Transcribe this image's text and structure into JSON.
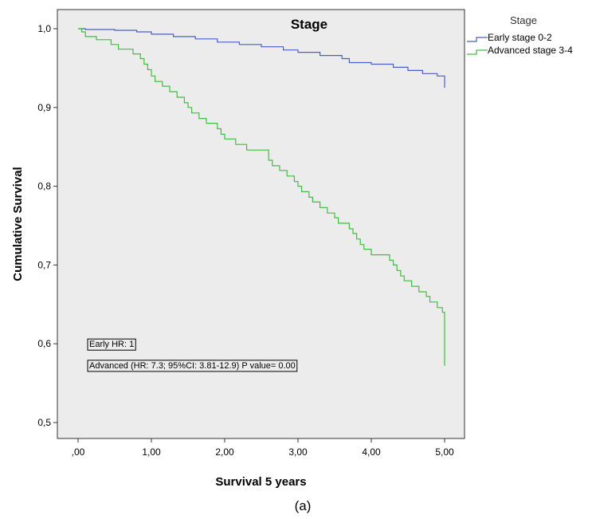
{
  "chart_data": {
    "type": "line",
    "title": "Stage",
    "xlabel": "Survival 5 years",
    "ylabel": "Cumulative Survival",
    "xlim": [
      0,
      5
    ],
    "ylim": [
      0.5,
      1.0
    ],
    "x_ticks": [
      {
        "value": 0,
        "label": ",00"
      },
      {
        "value": 1,
        "label": "1,00"
      },
      {
        "value": 2,
        "label": "2,00"
      },
      {
        "value": 3,
        "label": "3,00"
      },
      {
        "value": 4,
        "label": "4,00"
      },
      {
        "value": 5,
        "label": "5,00"
      }
    ],
    "y_ticks": [
      {
        "value": 0.5,
        "label": "0,5"
      },
      {
        "value": 0.6,
        "label": "0,6"
      },
      {
        "value": 0.7,
        "label": "0,7"
      },
      {
        "value": 0.8,
        "label": "0,8"
      },
      {
        "value": 0.9,
        "label": "0,9"
      },
      {
        "value": 1.0,
        "label": "1,0"
      }
    ],
    "grid": false,
    "legend": {
      "title": "Stage",
      "placement": "top-right-outside"
    },
    "series": [
      {
        "name": "Early stage 0-2",
        "color": "#4a5fc1",
        "step": true,
        "points": [
          [
            0,
            1.0
          ],
          [
            0.1,
            0.999
          ],
          [
            0.5,
            0.998
          ],
          [
            0.8,
            0.996
          ],
          [
            1.0,
            0.993
          ],
          [
            1.3,
            0.99
          ],
          [
            1.6,
            0.987
          ],
          [
            1.9,
            0.983
          ],
          [
            2.2,
            0.98
          ],
          [
            2.5,
            0.977
          ],
          [
            2.8,
            0.973
          ],
          [
            3.0,
            0.97
          ],
          [
            3.3,
            0.966
          ],
          [
            3.6,
            0.962
          ],
          [
            3.7,
            0.957
          ],
          [
            4.0,
            0.955
          ],
          [
            4.3,
            0.951
          ],
          [
            4.5,
            0.947
          ],
          [
            4.7,
            0.943
          ],
          [
            4.9,
            0.94
          ],
          [
            5.0,
            0.936
          ],
          [
            5.0,
            0.925
          ]
        ]
      },
      {
        "name": "Advanced stage 3-4",
        "color": "#3fbf3f",
        "step": true,
        "points": [
          [
            0,
            1.0
          ],
          [
            0.05,
            0.996
          ],
          [
            0.1,
            0.99
          ],
          [
            0.25,
            0.986
          ],
          [
            0.45,
            0.98
          ],
          [
            0.55,
            0.974
          ],
          [
            0.75,
            0.968
          ],
          [
            0.85,
            0.962
          ],
          [
            0.9,
            0.955
          ],
          [
            0.95,
            0.948
          ],
          [
            1.0,
            0.94
          ],
          [
            1.05,
            0.933
          ],
          [
            1.15,
            0.927
          ],
          [
            1.25,
            0.92
          ],
          [
            1.35,
            0.913
          ],
          [
            1.45,
            0.906
          ],
          [
            1.5,
            0.9
          ],
          [
            1.55,
            0.893
          ],
          [
            1.65,
            0.886
          ],
          [
            1.75,
            0.88
          ],
          [
            1.9,
            0.873
          ],
          [
            1.95,
            0.866
          ],
          [
            2.0,
            0.86
          ],
          [
            2.15,
            0.853
          ],
          [
            2.3,
            0.846
          ],
          [
            2.6,
            0.84
          ],
          [
            2.6,
            0.833
          ],
          [
            2.65,
            0.826
          ],
          [
            2.75,
            0.82
          ],
          [
            2.85,
            0.813
          ],
          [
            2.95,
            0.806
          ],
          [
            3.0,
            0.8
          ],
          [
            3.05,
            0.793
          ],
          [
            3.15,
            0.786
          ],
          [
            3.2,
            0.78
          ],
          [
            3.3,
            0.773
          ],
          [
            3.4,
            0.766
          ],
          [
            3.5,
            0.76
          ],
          [
            3.55,
            0.753
          ],
          [
            3.7,
            0.746
          ],
          [
            3.75,
            0.74
          ],
          [
            3.8,
            0.733
          ],
          [
            3.85,
            0.726
          ],
          [
            3.9,
            0.72
          ],
          [
            4.0,
            0.713
          ],
          [
            4.25,
            0.706
          ],
          [
            4.3,
            0.7
          ],
          [
            4.35,
            0.693
          ],
          [
            4.4,
            0.686
          ],
          [
            4.45,
            0.68
          ],
          [
            4.55,
            0.673
          ],
          [
            4.65,
            0.666
          ],
          [
            4.75,
            0.66
          ],
          [
            4.8,
            0.653
          ],
          [
            4.9,
            0.646
          ],
          [
            4.97,
            0.64
          ],
          [
            5.0,
            0.632
          ],
          [
            5.0,
            0.572
          ]
        ]
      }
    ],
    "annotations": [
      {
        "text": "Early HR: 1",
        "x": 0.13,
        "y": 0.6
      },
      {
        "text": "Advanced (HR: 7.3; 95%CI: 3.81-12.9) P value= 0.00",
        "x": 0.13,
        "y": 0.573
      }
    ],
    "plot_background": "#ececec"
  },
  "caption": "(a)"
}
